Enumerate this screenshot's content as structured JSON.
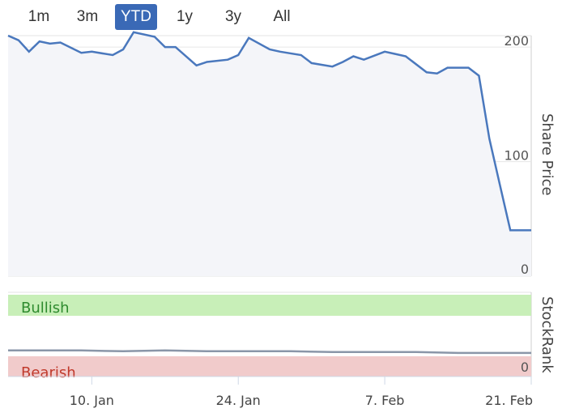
{
  "range_selector": {
    "buttons": [
      "1m",
      "3m",
      "YTD",
      "1y",
      "3y",
      "All"
    ],
    "selected": "YTD"
  },
  "colors": {
    "price_line": "#4a78bd",
    "price_fill": "#f4f5f9",
    "bullish_band": "#c8efb8",
    "bearish_band": "#f1cbcb",
    "bullish_text": "#2e8b2e",
    "bearish_text": "#c0392b",
    "selected_button": "#3a69b6"
  },
  "chart_data": [
    {
      "type": "line",
      "ylabel": "Share Price",
      "ylim": [
        0,
        210
      ],
      "yticks": [
        0,
        100,
        200
      ],
      "x": [
        "2025-01-02",
        "2025-01-03",
        "2025-01-04",
        "2025-01-05",
        "2025-01-06",
        "2025-01-07",
        "2025-01-09",
        "2025-01-10",
        "2025-01-12",
        "2025-01-13",
        "2025-01-14",
        "2025-01-16",
        "2025-01-17",
        "2025-01-18",
        "2025-01-20",
        "2025-01-21",
        "2025-01-23",
        "2025-01-24",
        "2025-01-25",
        "2025-01-27",
        "2025-01-28",
        "2025-01-30",
        "2025-01-31",
        "2025-02-02",
        "2025-02-03",
        "2025-02-04",
        "2025-02-05",
        "2025-02-07",
        "2025-02-08",
        "2025-02-09",
        "2025-02-11",
        "2025-02-12",
        "2025-02-13",
        "2025-02-15",
        "2025-02-16",
        "2025-02-17",
        "2025-02-18",
        "2025-02-19",
        "2025-02-21"
      ],
      "values": [
        210,
        206,
        196,
        205,
        203,
        204,
        195,
        196,
        193,
        198,
        213,
        209,
        200,
        200,
        184,
        187,
        189,
        193,
        208,
        198,
        196,
        193,
        186,
        183,
        187,
        192,
        189,
        196,
        194,
        192,
        178,
        177,
        182,
        182,
        175,
        120,
        80,
        40,
        40
      ],
      "xticks": [
        "10. Jan",
        "24. Jan",
        "7. Feb",
        "21. Feb"
      ],
      "xtick_dates": [
        "2025-01-10",
        "2025-01-24",
        "2025-02-07",
        "2025-02-21"
      ]
    },
    {
      "type": "area",
      "ylabel": "StockRank",
      "yticks": [
        0
      ],
      "bands": [
        {
          "label": "Bullish",
          "range": [
            67,
            100
          ]
        },
        {
          "label": "Bearish",
          "range": [
            0,
            33
          ]
        }
      ],
      "ylim": [
        0,
        100
      ],
      "series": [
        {
          "x": [
            "2025-01-02",
            "2025-01-05",
            "2025-01-09",
            "2025-01-13",
            "2025-01-17",
            "2025-01-21",
            "2025-01-25",
            "2025-01-29",
            "2025-02-02",
            "2025-02-06",
            "2025-02-10",
            "2025-02-14",
            "2025-02-17",
            "2025-02-19",
            "2025-02-21"
          ],
          "values": [
            31,
            31,
            31,
            30,
            31,
            30,
            30,
            30,
            29,
            29,
            29,
            28,
            28,
            28,
            28
          ]
        }
      ]
    }
  ]
}
